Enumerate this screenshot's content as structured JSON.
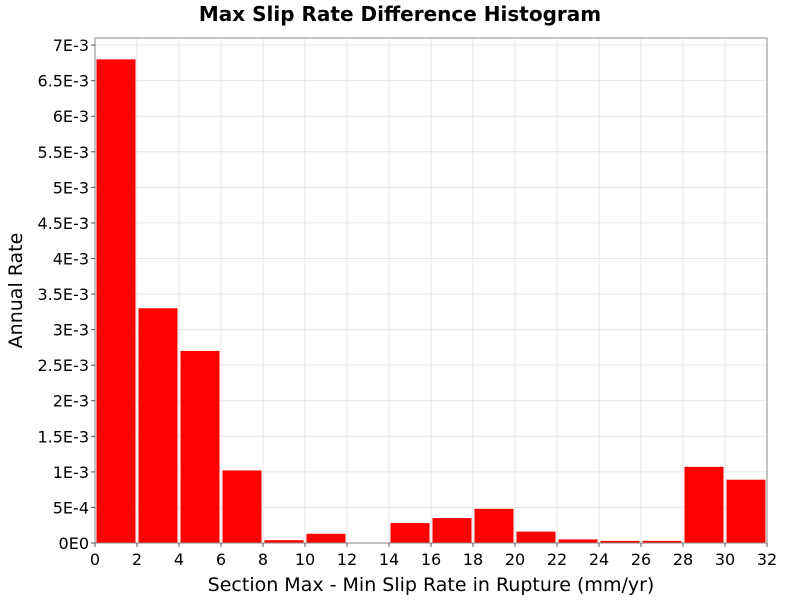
{
  "chart_data": {
    "type": "bar",
    "title": "Max Slip Rate Difference Histogram",
    "xlabel": "Section Max - Min Slip Rate in Rupture (mm/yr)",
    "ylabel": "Annual Rate",
    "xlim": [
      0,
      32
    ],
    "ylim": [
      0,
      0.0071
    ],
    "bin_width": 2,
    "x_ticks": [
      0,
      2,
      4,
      6,
      8,
      10,
      12,
      14,
      16,
      18,
      20,
      22,
      24,
      26,
      28,
      30,
      32
    ],
    "y_ticks": [
      {
        "value": 0,
        "label": "0E0"
      },
      {
        "value": 0.0005,
        "label": "5E-4"
      },
      {
        "value": 0.001,
        "label": "1E-3"
      },
      {
        "value": 0.0015,
        "label": "1.5E-3"
      },
      {
        "value": 0.002,
        "label": "2E-3"
      },
      {
        "value": 0.0025,
        "label": "2.5E-3"
      },
      {
        "value": 0.003,
        "label": "3E-3"
      },
      {
        "value": 0.0035,
        "label": "3.5E-3"
      },
      {
        "value": 0.004,
        "label": "4E-3"
      },
      {
        "value": 0.0045,
        "label": "4.5E-3"
      },
      {
        "value": 0.005,
        "label": "5E-3"
      },
      {
        "value": 0.0055,
        "label": "5.5E-3"
      },
      {
        "value": 0.006,
        "label": "6E-3"
      },
      {
        "value": 0.0065,
        "label": "6.5E-3"
      },
      {
        "value": 0.007,
        "label": "7E-3"
      }
    ],
    "bins": [
      {
        "center": 1,
        "value": 0.0068
      },
      {
        "center": 3,
        "value": 0.0033
      },
      {
        "center": 5,
        "value": 0.0027
      },
      {
        "center": 7,
        "value": 0.00102
      },
      {
        "center": 9,
        "value": 4e-05
      },
      {
        "center": 11,
        "value": 0.00013
      },
      {
        "center": 13,
        "value": 0.0
      },
      {
        "center": 15,
        "value": 0.00028
      },
      {
        "center": 17,
        "value": 0.00035
      },
      {
        "center": 19,
        "value": 0.00048
      },
      {
        "center": 21,
        "value": 0.00016
      },
      {
        "center": 23,
        "value": 5e-05
      },
      {
        "center": 25,
        "value": 3e-05
      },
      {
        "center": 27,
        "value": 3e-05
      },
      {
        "center": 29,
        "value": 0.00107
      },
      {
        "center": 31,
        "value": 0.00089
      }
    ],
    "bar_color": "#ff0000",
    "grid": true,
    "grid_color": "#e6e6e6",
    "frame_color": "#888888"
  }
}
